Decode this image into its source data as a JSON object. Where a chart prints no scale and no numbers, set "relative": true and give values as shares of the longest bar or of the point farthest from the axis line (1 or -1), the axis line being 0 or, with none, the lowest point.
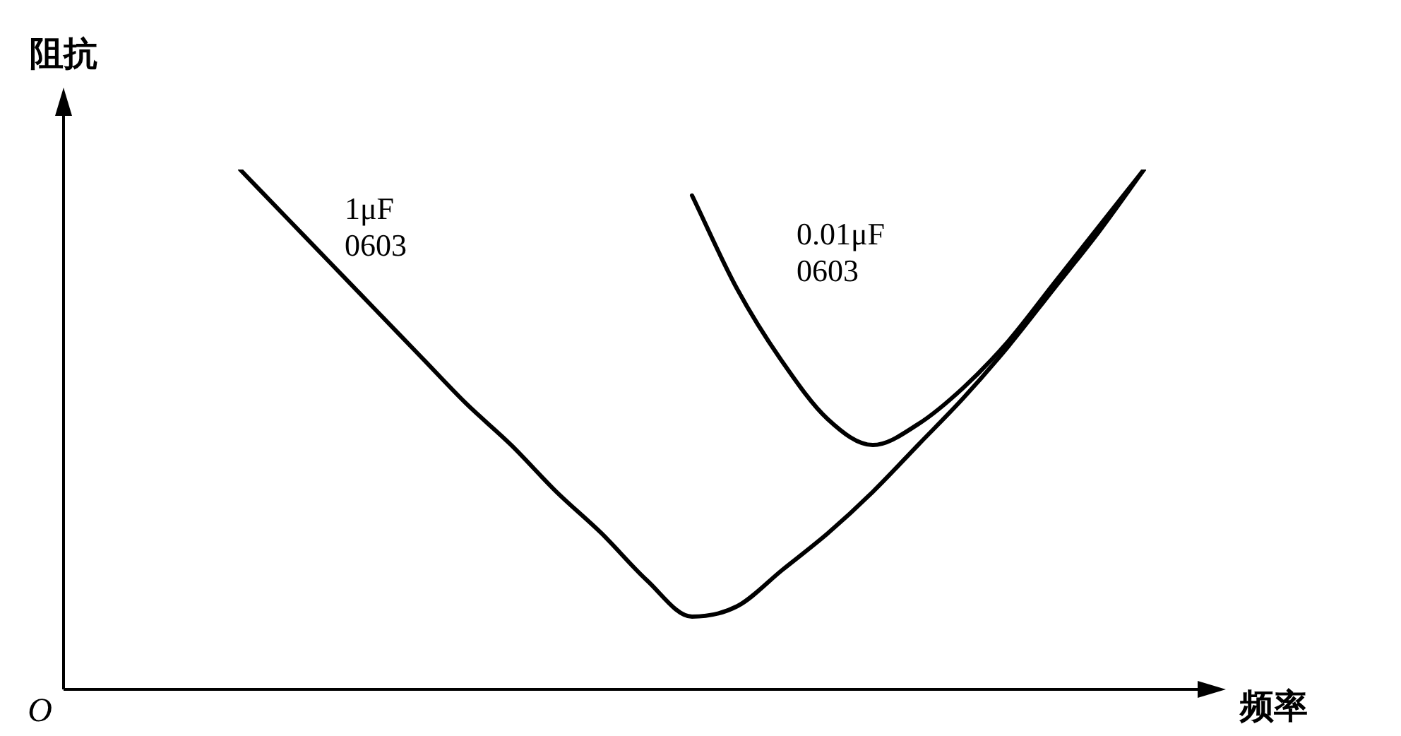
{
  "chart_data": {
    "type": "line",
    "relative": true,
    "xlabel": "频率",
    "ylabel": "阻抗",
    "annotations": [
      "O"
    ],
    "legend": false,
    "marker": "none",
    "line_style": "solid",
    "categories": [
      null,
      null,
      null,
      null,
      null,
      null,
      null,
      null,
      null,
      null,
      null,
      null,
      null,
      null,
      null,
      null,
      null,
      null,
      null,
      null,
      null
    ],
    "series": [
      {
        "name": "1μF 0603",
        "color": "#000000",
        "values": [
          1.0,
          0.91,
          0.82,
          0.73,
          0.64,
          0.55,
          0.47,
          0.38,
          0.3,
          0.21,
          0.14,
          0.16,
          0.23,
          0.3,
          0.38,
          0.47,
          0.56,
          0.66,
          0.77,
          0.88,
          1.0
        ]
      },
      {
        "name": "0.01μF 0603",
        "color": "#000000",
        "values": [
          null,
          null,
          null,
          null,
          null,
          null,
          null,
          null,
          null,
          null,
          0.95,
          0.77,
          0.63,
          0.52,
          0.47,
          0.51,
          0.58,
          0.67,
          0.78,
          0.89,
          1.0
        ]
      }
    ]
  }
}
